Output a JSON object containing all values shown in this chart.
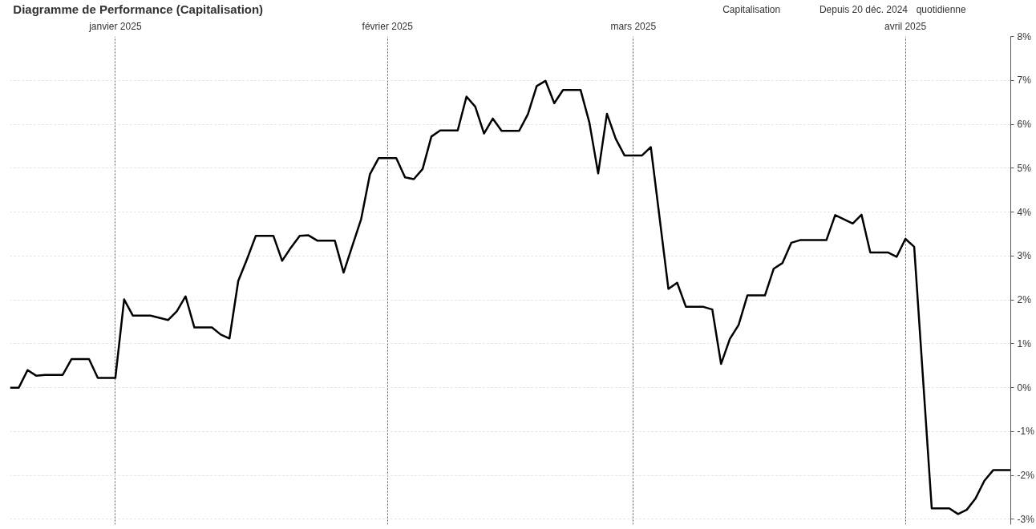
{
  "chart_data": {
    "type": "line",
    "title": "Diagramme de Performance (Capitalisation)",
    "annotations": [
      "Capitalisation",
      "Depuis 20 déc. 2024",
      "quotidienne"
    ],
    "x": [
      "2024-12-20",
      "2024-12-21",
      "2024-12-22",
      "2024-12-23",
      "2024-12-24",
      "2024-12-26",
      "2024-12-27",
      "2024-12-29",
      "2024-12-30",
      "2025-01-01",
      "2025-01-02",
      "2025-01-03",
      "2025-01-05",
      "2025-01-06",
      "2025-01-07",
      "2025-01-08",
      "2025-01-09",
      "2025-01-10",
      "2025-01-12",
      "2025-01-13",
      "2025-01-14",
      "2025-01-15",
      "2025-01-16",
      "2025-01-17",
      "2025-01-19",
      "2025-01-20",
      "2025-01-21",
      "2025-01-22",
      "2025-01-23",
      "2025-01-24",
      "2025-01-26",
      "2025-01-27",
      "2025-01-28",
      "2025-01-29",
      "2025-01-30",
      "2025-01-31",
      "2025-02-02",
      "2025-02-03",
      "2025-02-04",
      "2025-02-05",
      "2025-02-06",
      "2025-02-07",
      "2025-02-09",
      "2025-02-10",
      "2025-02-11",
      "2025-02-12",
      "2025-02-13",
      "2025-02-14",
      "2025-02-16",
      "2025-02-17",
      "2025-02-18",
      "2025-02-19",
      "2025-02-20",
      "2025-02-21",
      "2025-02-23",
      "2025-02-24",
      "2025-02-25",
      "2025-02-26",
      "2025-02-27",
      "2025-02-28",
      "2025-03-02",
      "2025-03-03",
      "2025-03-05",
      "2025-03-06",
      "2025-03-07",
      "2025-03-09",
      "2025-03-10",
      "2025-03-11",
      "2025-03-12",
      "2025-03-13",
      "2025-03-14",
      "2025-03-16",
      "2025-03-17",
      "2025-03-18",
      "2025-03-19",
      "2025-03-20",
      "2025-03-23",
      "2025-03-24",
      "2025-03-26",
      "2025-03-27",
      "2025-03-28",
      "2025-03-30",
      "2025-03-31",
      "2025-04-01",
      "2025-04-02",
      "2025-04-04",
      "2025-04-06",
      "2025-04-07",
      "2025-04-08",
      "2025-04-09",
      "2025-04-10",
      "2025-04-11",
      "2025-04-13"
    ],
    "series": [
      {
        "color": "#000000",
        "values": [
          0.0,
          0.0,
          0.4,
          0.27,
          0.29,
          0.29,
          0.65,
          0.65,
          0.22,
          0.22,
          2.01,
          1.64,
          1.64,
          1.59,
          1.54,
          1.74,
          2.08,
          1.37,
          1.37,
          1.21,
          1.12,
          2.43,
          2.93,
          3.46,
          3.46,
          2.89,
          3.19,
          3.46,
          3.47,
          3.35,
          3.35,
          2.62,
          3.23,
          3.84,
          4.86,
          5.23,
          5.23,
          4.79,
          4.75,
          4.98,
          5.72,
          5.86,
          5.86,
          6.63,
          6.4,
          5.79,
          6.13,
          5.85,
          5.85,
          6.23,
          6.87,
          6.99,
          6.48,
          6.78,
          6.78,
          6.04,
          4.88,
          6.24,
          5.67,
          5.29,
          5.29,
          5.48,
          2.25,
          2.39,
          1.84,
          1.84,
          1.78,
          0.54,
          1.11,
          1.43,
          2.1,
          2.1,
          2.71,
          2.84,
          3.3,
          3.36,
          3.36,
          3.93,
          3.74,
          3.94,
          3.08,
          3.08,
          2.98,
          3.39,
          3.21,
          -2.75,
          -2.75,
          -2.88,
          -2.78,
          -2.52,
          -2.12,
          -1.88,
          -1.88
        ]
      }
    ],
    "xlim": [
      "2024-12-20",
      "2025-04-13"
    ],
    "xticks": [
      {
        "value": "2025-01-01",
        "label": "janvier 2025"
      },
      {
        "value": "2025-02-01",
        "label": "février 2025"
      },
      {
        "value": "2025-03-01",
        "label": "mars 2025"
      },
      {
        "value": "2025-04-01",
        "label": "avril 2025"
      }
    ],
    "ylim": [
      -3.12,
      8
    ],
    "yticks": [
      {
        "value": 8,
        "label": "8%"
      },
      {
        "value": 7,
        "label": "7%"
      },
      {
        "value": 6,
        "label": "6%"
      },
      {
        "value": 5,
        "label": "5%"
      },
      {
        "value": 4,
        "label": "4%"
      },
      {
        "value": 3,
        "label": "3%"
      },
      {
        "value": 2,
        "label": "2%"
      },
      {
        "value": 1,
        "label": "1%"
      },
      {
        "value": 0,
        "label": "0%"
      },
      {
        "value": -1,
        "label": "-1%"
      },
      {
        "value": -2,
        "label": "-2%"
      },
      {
        "value": -3,
        "label": "-3%"
      }
    ],
    "grid": true,
    "marker": "none",
    "line_style": "solid"
  }
}
